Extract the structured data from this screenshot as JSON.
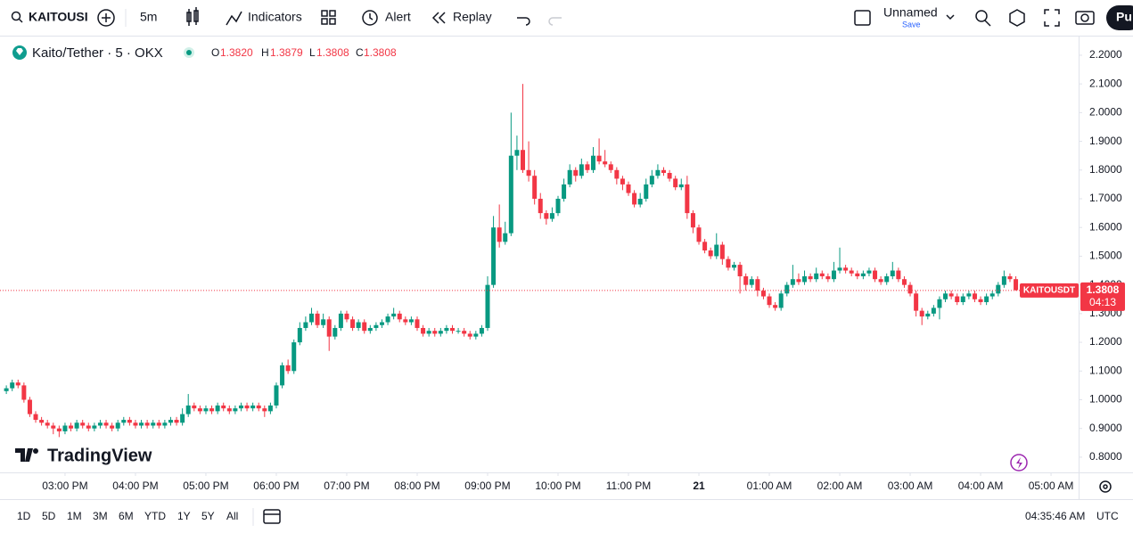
{
  "toolbar": {
    "symbol": "KAITOUSI",
    "interval": "5m",
    "indicators": "Indicators",
    "alert": "Alert",
    "replay": "Replay",
    "layout": "Unnamed",
    "save": "Save",
    "publish": "Pu"
  },
  "legend": {
    "title": "Kaito/Tether · 5 · OKX",
    "o": "O",
    "o_value": "1.3820",
    "h": "H",
    "h_value": "1.3879",
    "l": "L",
    "l_value": "1.3808",
    "c": "C",
    "c_value": "1.3808"
  },
  "price_tag": {
    "symbol": "KAITOUSDT",
    "price": "1.3808",
    "countdown": "04:13"
  },
  "watermark": "TradingView",
  "bottom_bar": {
    "ranges": [
      "1D",
      "5D",
      "1M",
      "3M",
      "6M",
      "YTD",
      "1Y",
      "5Y",
      "All"
    ],
    "clock": "04:35:46 AM",
    "timezone": "UTC"
  },
  "chart_data": {
    "type": "candlestick",
    "up_color": "#089981",
    "down_color": "#f23645",
    "grid": false,
    "xlim": [
      844.6,
      1763.5
    ],
    "ylim": [
      0.747,
      2.265
    ],
    "xticks": [
      {
        "value": 900,
        "label": "03:00 PM"
      },
      {
        "value": 960,
        "label": "04:00 PM"
      },
      {
        "value": 1020,
        "label": "05:00 PM"
      },
      {
        "value": 1080,
        "label": "06:00 PM"
      },
      {
        "value": 1140,
        "label": "07:00 PM"
      },
      {
        "value": 1200,
        "label": "08:00 PM"
      },
      {
        "value": 1260,
        "label": "09:00 PM"
      },
      {
        "value": 1320,
        "label": "10:00 PM"
      },
      {
        "value": 1380,
        "label": "11:00 PM"
      },
      {
        "value": 1440,
        "label": "21"
      },
      {
        "value": 1500,
        "label": "01:00 AM"
      },
      {
        "value": 1560,
        "label": "02:00 AM"
      },
      {
        "value": 1620,
        "label": "03:00 AM"
      },
      {
        "value": 1680,
        "label": "04:00 AM"
      },
      {
        "value": 1740,
        "label": "05:00 AM"
      }
    ],
    "yticks": [
      {
        "value": 0.8,
        "label": "0.8000"
      },
      {
        "value": 0.9,
        "label": "0.9000"
      },
      {
        "value": 1.0,
        "label": "1.0000"
      },
      {
        "value": 1.1,
        "label": "1.1000"
      },
      {
        "value": 1.2,
        "label": "1.2000"
      },
      {
        "value": 1.3,
        "label": "1.3000"
      },
      {
        "value": 1.4,
        "label": "1.4000"
      },
      {
        "value": 1.5,
        "label": "1.5000"
      },
      {
        "value": 1.6,
        "label": "1.6000"
      },
      {
        "value": 1.7,
        "label": "1.7000"
      },
      {
        "value": 1.8,
        "label": "1.8000"
      },
      {
        "value": 1.9,
        "label": "1.9000"
      },
      {
        "value": 2.0,
        "label": "2.0000"
      },
      {
        "value": 2.1,
        "label": "2.1000"
      },
      {
        "value": 2.2,
        "label": "2.2000"
      }
    ],
    "x": [
      850,
      855,
      860,
      865,
      870,
      875,
      880,
      885,
      890,
      895,
      900,
      905,
      910,
      915,
      920,
      925,
      930,
      935,
      940,
      945,
      950,
      955,
      960,
      965,
      970,
      975,
      980,
      985,
      990,
      995,
      1000,
      1005,
      1010,
      1015,
      1020,
      1025,
      1030,
      1035,
      1040,
      1045,
      1050,
      1055,
      1060,
      1065,
      1070,
      1075,
      1080,
      1085,
      1090,
      1095,
      1100,
      1105,
      1110,
      1115,
      1120,
      1125,
      1130,
      1135,
      1140,
      1145,
      1150,
      1155,
      1160,
      1165,
      1170,
      1175,
      1180,
      1185,
      1190,
      1195,
      1200,
      1205,
      1210,
      1215,
      1220,
      1225,
      1230,
      1235,
      1240,
      1245,
      1250,
      1255,
      1260,
      1265,
      1270,
      1275,
      1280,
      1285,
      1290,
      1295,
      1300,
      1305,
      1310,
      1315,
      1320,
      1325,
      1330,
      1335,
      1340,
      1345,
      1350,
      1355,
      1360,
      1365,
      1370,
      1375,
      1380,
      1385,
      1390,
      1395,
      1400,
      1405,
      1410,
      1415,
      1420,
      1425,
      1430,
      1435,
      1440,
      1445,
      1450,
      1455,
      1460,
      1465,
      1470,
      1475,
      1480,
      1485,
      1490,
      1495,
      1500,
      1505,
      1510,
      1515,
      1520,
      1525,
      1530,
      1535,
      1540,
      1545,
      1550,
      1555,
      1560,
      1565,
      1570,
      1575,
      1580,
      1585,
      1590,
      1595,
      1600,
      1605,
      1610,
      1615,
      1620,
      1625,
      1630,
      1635,
      1640,
      1645,
      1650,
      1655,
      1660,
      1665,
      1670,
      1675,
      1680,
      1685,
      1690,
      1695,
      1700,
      1705,
      1710,
      1715
    ],
    "ohlc": [
      [
        1.03,
        1.05,
        1.02,
        1.04
      ],
      [
        1.04,
        1.07,
        1.03,
        1.06
      ],
      [
        1.06,
        1.07,
        1.04,
        1.05
      ],
      [
        1.05,
        1.06,
        0.99,
        1.0
      ],
      [
        1.0,
        1.01,
        0.94,
        0.95
      ],
      [
        0.95,
        0.96,
        0.92,
        0.93
      ],
      [
        0.93,
        0.94,
        0.91,
        0.92
      ],
      [
        0.92,
        0.93,
        0.9,
        0.91
      ],
      [
        0.91,
        0.92,
        0.88,
        0.9
      ],
      [
        0.9,
        0.91,
        0.87,
        0.89
      ],
      [
        0.89,
        0.92,
        0.88,
        0.91
      ],
      [
        0.91,
        0.92,
        0.89,
        0.9
      ],
      [
        0.9,
        0.93,
        0.89,
        0.92
      ],
      [
        0.92,
        0.93,
        0.9,
        0.91
      ],
      [
        0.91,
        0.92,
        0.89,
        0.9
      ],
      [
        0.9,
        0.92,
        0.89,
        0.91
      ],
      [
        0.91,
        0.93,
        0.9,
        0.92
      ],
      [
        0.92,
        0.93,
        0.9,
        0.91
      ],
      [
        0.91,
        0.92,
        0.89,
        0.9
      ],
      [
        0.9,
        0.93,
        0.89,
        0.92
      ],
      [
        0.92,
        0.94,
        0.91,
        0.93
      ],
      [
        0.93,
        0.94,
        0.91,
        0.92
      ],
      [
        0.92,
        0.93,
        0.9,
        0.91
      ],
      [
        0.91,
        0.93,
        0.9,
        0.92
      ],
      [
        0.92,
        0.93,
        0.9,
        0.91
      ],
      [
        0.91,
        0.93,
        0.9,
        0.92
      ],
      [
        0.92,
        0.93,
        0.9,
        0.91
      ],
      [
        0.91,
        0.93,
        0.9,
        0.92
      ],
      [
        0.92,
        0.94,
        0.91,
        0.93
      ],
      [
        0.93,
        0.94,
        0.91,
        0.92
      ],
      [
        0.92,
        0.97,
        0.91,
        0.95
      ],
      [
        0.95,
        1.02,
        0.94,
        0.98
      ],
      [
        0.98,
        0.99,
        0.96,
        0.97
      ],
      [
        0.97,
        0.98,
        0.95,
        0.96
      ],
      [
        0.96,
        0.98,
        0.95,
        0.97
      ],
      [
        0.97,
        0.98,
        0.95,
        0.96
      ],
      [
        0.96,
        0.99,
        0.95,
        0.98
      ],
      [
        0.98,
        0.99,
        0.96,
        0.97
      ],
      [
        0.97,
        0.98,
        0.95,
        0.96
      ],
      [
        0.96,
        0.98,
        0.95,
        0.97
      ],
      [
        0.97,
        0.99,
        0.96,
        0.98
      ],
      [
        0.98,
        0.99,
        0.96,
        0.97
      ],
      [
        0.97,
        0.99,
        0.96,
        0.98
      ],
      [
        0.98,
        0.99,
        0.96,
        0.97
      ],
      [
        0.97,
        0.98,
        0.94,
        0.96
      ],
      [
        0.96,
        0.99,
        0.95,
        0.98
      ],
      [
        0.98,
        1.06,
        0.97,
        1.05
      ],
      [
        1.05,
        1.13,
        1.04,
        1.12
      ],
      [
        1.12,
        1.14,
        1.09,
        1.1
      ],
      [
        1.1,
        1.21,
        1.09,
        1.2
      ],
      [
        1.2,
        1.27,
        1.19,
        1.25
      ],
      [
        1.25,
        1.29,
        1.24,
        1.27
      ],
      [
        1.27,
        1.32,
        1.26,
        1.3
      ],
      [
        1.3,
        1.31,
        1.25,
        1.26
      ],
      [
        1.26,
        1.3,
        1.25,
        1.28
      ],
      [
        1.28,
        1.29,
        1.17,
        1.22
      ],
      [
        1.22,
        1.26,
        1.21,
        1.25
      ],
      [
        1.25,
        1.31,
        1.24,
        1.3
      ],
      [
        1.3,
        1.31,
        1.27,
        1.28
      ],
      [
        1.28,
        1.29,
        1.24,
        1.25
      ],
      [
        1.25,
        1.28,
        1.24,
        1.27
      ],
      [
        1.27,
        1.28,
        1.23,
        1.24
      ],
      [
        1.24,
        1.26,
        1.23,
        1.25
      ],
      [
        1.25,
        1.27,
        1.24,
        1.26
      ],
      [
        1.26,
        1.28,
        1.25,
        1.27
      ],
      [
        1.27,
        1.3,
        1.26,
        1.29
      ],
      [
        1.29,
        1.32,
        1.28,
        1.3
      ],
      [
        1.3,
        1.31,
        1.27,
        1.28
      ],
      [
        1.28,
        1.29,
        1.26,
        1.27
      ],
      [
        1.27,
        1.29,
        1.26,
        1.28
      ],
      [
        1.28,
        1.29,
        1.24,
        1.25
      ],
      [
        1.25,
        1.26,
        1.22,
        1.23
      ],
      [
        1.23,
        1.25,
        1.22,
        1.24
      ],
      [
        1.24,
        1.25,
        1.22,
        1.23
      ],
      [
        1.23,
        1.25,
        1.22,
        1.24
      ],
      [
        1.24,
        1.26,
        1.23,
        1.25
      ],
      [
        1.25,
        1.26,
        1.23,
        1.24
      ],
      [
        1.24,
        1.25,
        1.23,
        1.24
      ],
      [
        1.24,
        1.25,
        1.22,
        1.23
      ],
      [
        1.23,
        1.24,
        1.21,
        1.22
      ],
      [
        1.22,
        1.24,
        1.21,
        1.23
      ],
      [
        1.23,
        1.26,
        1.22,
        1.25
      ],
      [
        1.25,
        1.43,
        1.24,
        1.4
      ],
      [
        1.4,
        1.64,
        1.39,
        1.6
      ],
      [
        1.6,
        1.68,
        1.53,
        1.55
      ],
      [
        1.55,
        1.62,
        1.54,
        1.58
      ],
      [
        1.58,
        2.0,
        1.57,
        1.85
      ],
      [
        1.85,
        1.92,
        1.8,
        1.87
      ],
      [
        1.87,
        2.1,
        1.79,
        1.8
      ],
      [
        1.8,
        1.9,
        1.76,
        1.78
      ],
      [
        1.78,
        1.8,
        1.68,
        1.7
      ],
      [
        1.7,
        1.72,
        1.63,
        1.65
      ],
      [
        1.65,
        1.66,
        1.61,
        1.63
      ],
      [
        1.63,
        1.67,
        1.62,
        1.65
      ],
      [
        1.65,
        1.71,
        1.64,
        1.7
      ],
      [
        1.7,
        1.77,
        1.69,
        1.75
      ],
      [
        1.75,
        1.82,
        1.74,
        1.8
      ],
      [
        1.8,
        1.81,
        1.76,
        1.78
      ],
      [
        1.78,
        1.84,
        1.77,
        1.82
      ],
      [
        1.82,
        1.83,
        1.79,
        1.8
      ],
      [
        1.8,
        1.88,
        1.79,
        1.85
      ],
      [
        1.85,
        1.91,
        1.82,
        1.83
      ],
      [
        1.83,
        1.87,
        1.81,
        1.82
      ],
      [
        1.82,
        1.83,
        1.79,
        1.8
      ],
      [
        1.8,
        1.81,
        1.75,
        1.77
      ],
      [
        1.77,
        1.78,
        1.73,
        1.75
      ],
      [
        1.75,
        1.76,
        1.71,
        1.72
      ],
      [
        1.72,
        1.73,
        1.67,
        1.68
      ],
      [
        1.68,
        1.72,
        1.67,
        1.7
      ],
      [
        1.7,
        1.77,
        1.69,
        1.75
      ],
      [
        1.75,
        1.8,
        1.74,
        1.78
      ],
      [
        1.78,
        1.82,
        1.77,
        1.8
      ],
      [
        1.8,
        1.81,
        1.78,
        1.79
      ],
      [
        1.79,
        1.8,
        1.76,
        1.77
      ],
      [
        1.77,
        1.78,
        1.73,
        1.74
      ],
      [
        1.74,
        1.77,
        1.73,
        1.75
      ],
      [
        1.75,
        1.78,
        1.63,
        1.65
      ],
      [
        1.65,
        1.66,
        1.58,
        1.6
      ],
      [
        1.6,
        1.61,
        1.54,
        1.55
      ],
      [
        1.55,
        1.56,
        1.51,
        1.52
      ],
      [
        1.52,
        1.53,
        1.49,
        1.5
      ],
      [
        1.5,
        1.58,
        1.49,
        1.54
      ],
      [
        1.54,
        1.55,
        1.47,
        1.49
      ],
      [
        1.49,
        1.5,
        1.45,
        1.46
      ],
      [
        1.46,
        1.48,
        1.45,
        1.47
      ],
      [
        1.47,
        1.48,
        1.37,
        1.43
      ],
      [
        1.43,
        1.44,
        1.38,
        1.4
      ],
      [
        1.4,
        1.43,
        1.39,
        1.42
      ],
      [
        1.42,
        1.43,
        1.36,
        1.38
      ],
      [
        1.38,
        1.39,
        1.35,
        1.36
      ],
      [
        1.36,
        1.37,
        1.32,
        1.33
      ],
      [
        1.33,
        1.34,
        1.31,
        1.32
      ],
      [
        1.32,
        1.38,
        1.31,
        1.37
      ],
      [
        1.37,
        1.41,
        1.36,
        1.4
      ],
      [
        1.4,
        1.47,
        1.39,
        1.42
      ],
      [
        1.42,
        1.44,
        1.4,
        1.41
      ],
      [
        1.41,
        1.45,
        1.4,
        1.43
      ],
      [
        1.43,
        1.44,
        1.41,
        1.42
      ],
      [
        1.42,
        1.46,
        1.41,
        1.44
      ],
      [
        1.44,
        1.45,
        1.42,
        1.43
      ],
      [
        1.43,
        1.44,
        1.41,
        1.42
      ],
      [
        1.42,
        1.48,
        1.41,
        1.45
      ],
      [
        1.45,
        1.53,
        1.44,
        1.46
      ],
      [
        1.46,
        1.47,
        1.44,
        1.45
      ],
      [
        1.45,
        1.46,
        1.43,
        1.44
      ],
      [
        1.44,
        1.45,
        1.42,
        1.43
      ],
      [
        1.43,
        1.45,
        1.42,
        1.44
      ],
      [
        1.44,
        1.46,
        1.43,
        1.45
      ],
      [
        1.45,
        1.46,
        1.41,
        1.42
      ],
      [
        1.42,
        1.43,
        1.4,
        1.41
      ],
      [
        1.41,
        1.44,
        1.4,
        1.43
      ],
      [
        1.43,
        1.48,
        1.42,
        1.45
      ],
      [
        1.45,
        1.46,
        1.41,
        1.42
      ],
      [
        1.42,
        1.43,
        1.39,
        1.4
      ],
      [
        1.4,
        1.41,
        1.36,
        1.37
      ],
      [
        1.37,
        1.38,
        1.29,
        1.31
      ],
      [
        1.31,
        1.32,
        1.26,
        1.29
      ],
      [
        1.29,
        1.31,
        1.28,
        1.3
      ],
      [
        1.3,
        1.33,
        1.29,
        1.32
      ],
      [
        1.32,
        1.36,
        1.28,
        1.35
      ],
      [
        1.35,
        1.38,
        1.34,
        1.37
      ],
      [
        1.37,
        1.38,
        1.35,
        1.36
      ],
      [
        1.36,
        1.37,
        1.33,
        1.34
      ],
      [
        1.34,
        1.37,
        1.33,
        1.36
      ],
      [
        1.36,
        1.38,
        1.35,
        1.37
      ],
      [
        1.37,
        1.38,
        1.34,
        1.35
      ],
      [
        1.35,
        1.36,
        1.33,
        1.34
      ],
      [
        1.34,
        1.37,
        1.33,
        1.36
      ],
      [
        1.36,
        1.38,
        1.35,
        1.37
      ],
      [
        1.37,
        1.41,
        1.36,
        1.4
      ],
      [
        1.4,
        1.45,
        1.39,
        1.43
      ],
      [
        1.43,
        1.44,
        1.41,
        1.42
      ],
      [
        1.42,
        1.43,
        1.38,
        1.382
      ],
      [
        1.382,
        1.3879,
        1.3808,
        1.3808
      ]
    ]
  }
}
